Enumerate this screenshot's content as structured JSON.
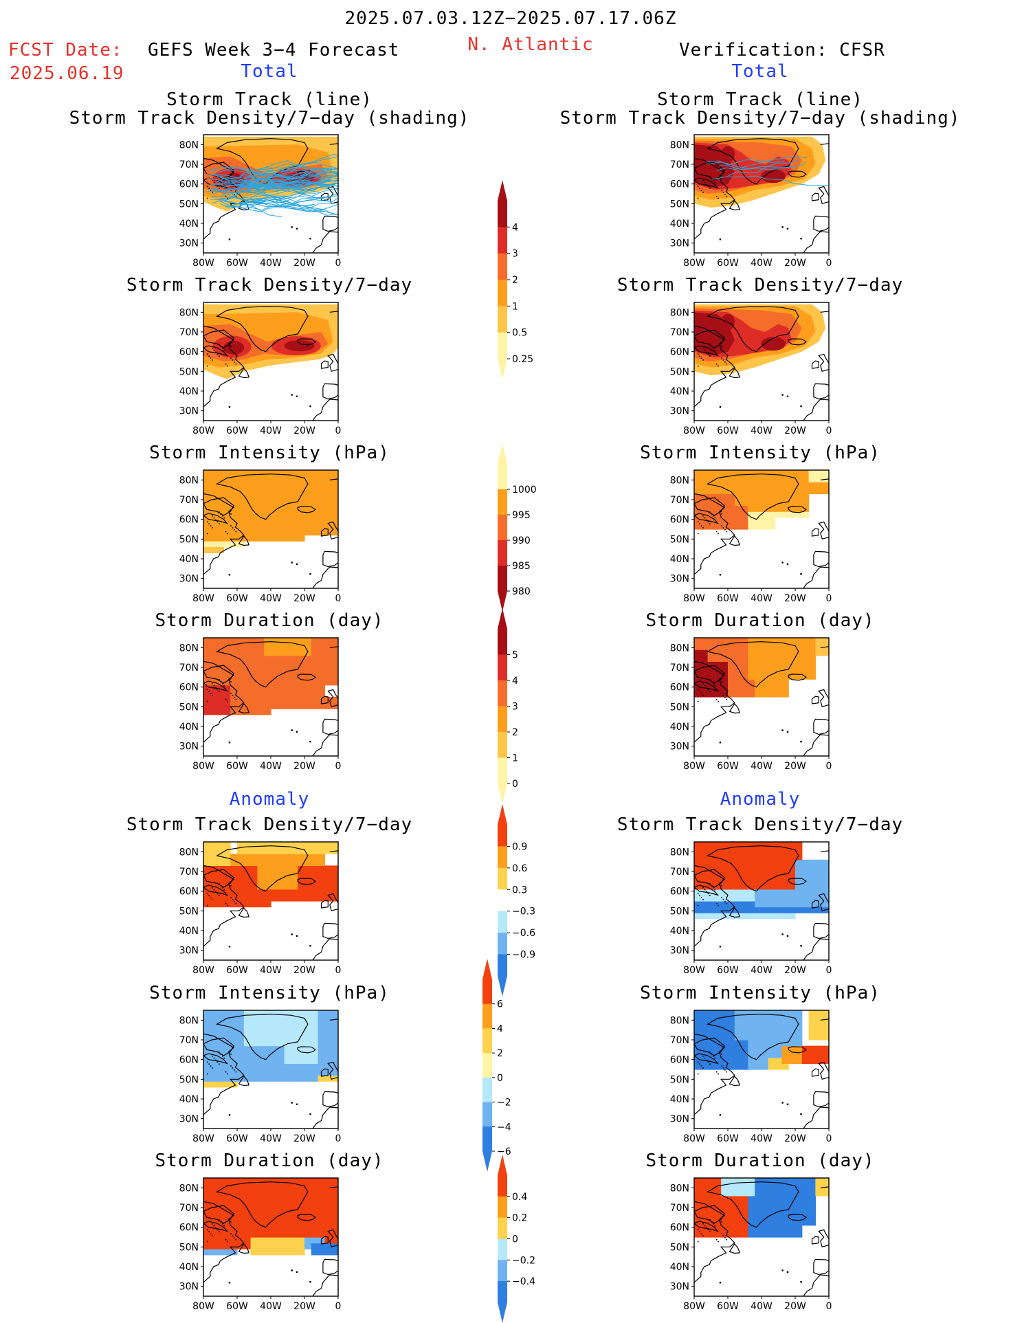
{
  "header": {
    "period": "2025.07.03.12Z−2025.07.17.06Z",
    "fcst_label": "FCST Date:",
    "fcst_date": "2025.06.19",
    "forecast_title": "GEFS Week 3−4 Forecast",
    "region": "N. Atlantic",
    "verification": "Verification: CFSR"
  },
  "sections": {
    "total": "Total",
    "anomaly": "Anomaly"
  },
  "map_axes": {
    "lat_ticks": [
      "80N",
      "70N",
      "60N",
      "50N",
      "40N",
      "30N"
    ],
    "lon_ticks": [
      "80W",
      "60W",
      "40W",
      "20W",
      "0"
    ]
  },
  "panels": {
    "track_line": "Storm Track (line)",
    "track_shading": "Storm Track Density/7−day (shading)",
    "density": "Storm Track Density/7−day",
    "intensity": "Storm Intensity (hPa)",
    "duration": "Storm Duration (day)"
  },
  "colorbars": [
    {
      "name": "density",
      "labels": [
        "4",
        "3",
        "2",
        "1",
        "0.5",
        "0.25"
      ],
      "colors": [
        "#a50f15",
        "#de2d26",
        "#f46d2a",
        "#fd9f1c",
        "#ffc44a",
        "#fff3a6"
      ]
    },
    {
      "name": "intensity",
      "labels": [
        "1000",
        "995",
        "990",
        "985",
        "980"
      ],
      "colors": [
        "#fff3a6",
        "#fd9f1c",
        "#f46d2a",
        "#de2d26",
        "#a50f15"
      ]
    },
    {
      "name": "duration",
      "labels": [
        "5",
        "4",
        "3",
        "2",
        "1",
        "0"
      ],
      "colors": [
        "#a50f15",
        "#de2d26",
        "#f46d2a",
        "#fd9f1c",
        "#ffc44a",
        "#fff3a6"
      ]
    },
    {
      "name": "density-anom",
      "labels": [
        "0.9",
        "0.6",
        "0.3",
        "−0.3",
        "−0.6",
        "−0.9"
      ],
      "colors": [
        "#f2400f",
        "#fd9f1c",
        "#ffd24d",
        "#ffffff",
        "#b6e8fb",
        "#6fb3f0",
        "#2f7fe0"
      ]
    },
    {
      "name": "intensity-anom",
      "labels": [
        "6",
        "4",
        "2",
        "0",
        "−2",
        "−4",
        "−6"
      ],
      "colors": [
        "#f2400f",
        "#fd9f1c",
        "#ffd24d",
        "#fff3a6",
        "#b6e8fb",
        "#6fb3f0",
        "#2f7fe0"
      ]
    },
    {
      "name": "duration-anom",
      "labels": [
        "0.4",
        "0.2",
        "0",
        "−0.2",
        "−0.4"
      ],
      "colors": [
        "#f2400f",
        "#fd9f1c",
        "#ffd24d",
        "#b6e8fb",
        "#6fb3f0",
        "#2f7fe0"
      ]
    }
  ],
  "colors": {
    "header_red": "#e8312a",
    "section_blue": "#1f3bff",
    "track_line": "#2aa6e0"
  }
}
